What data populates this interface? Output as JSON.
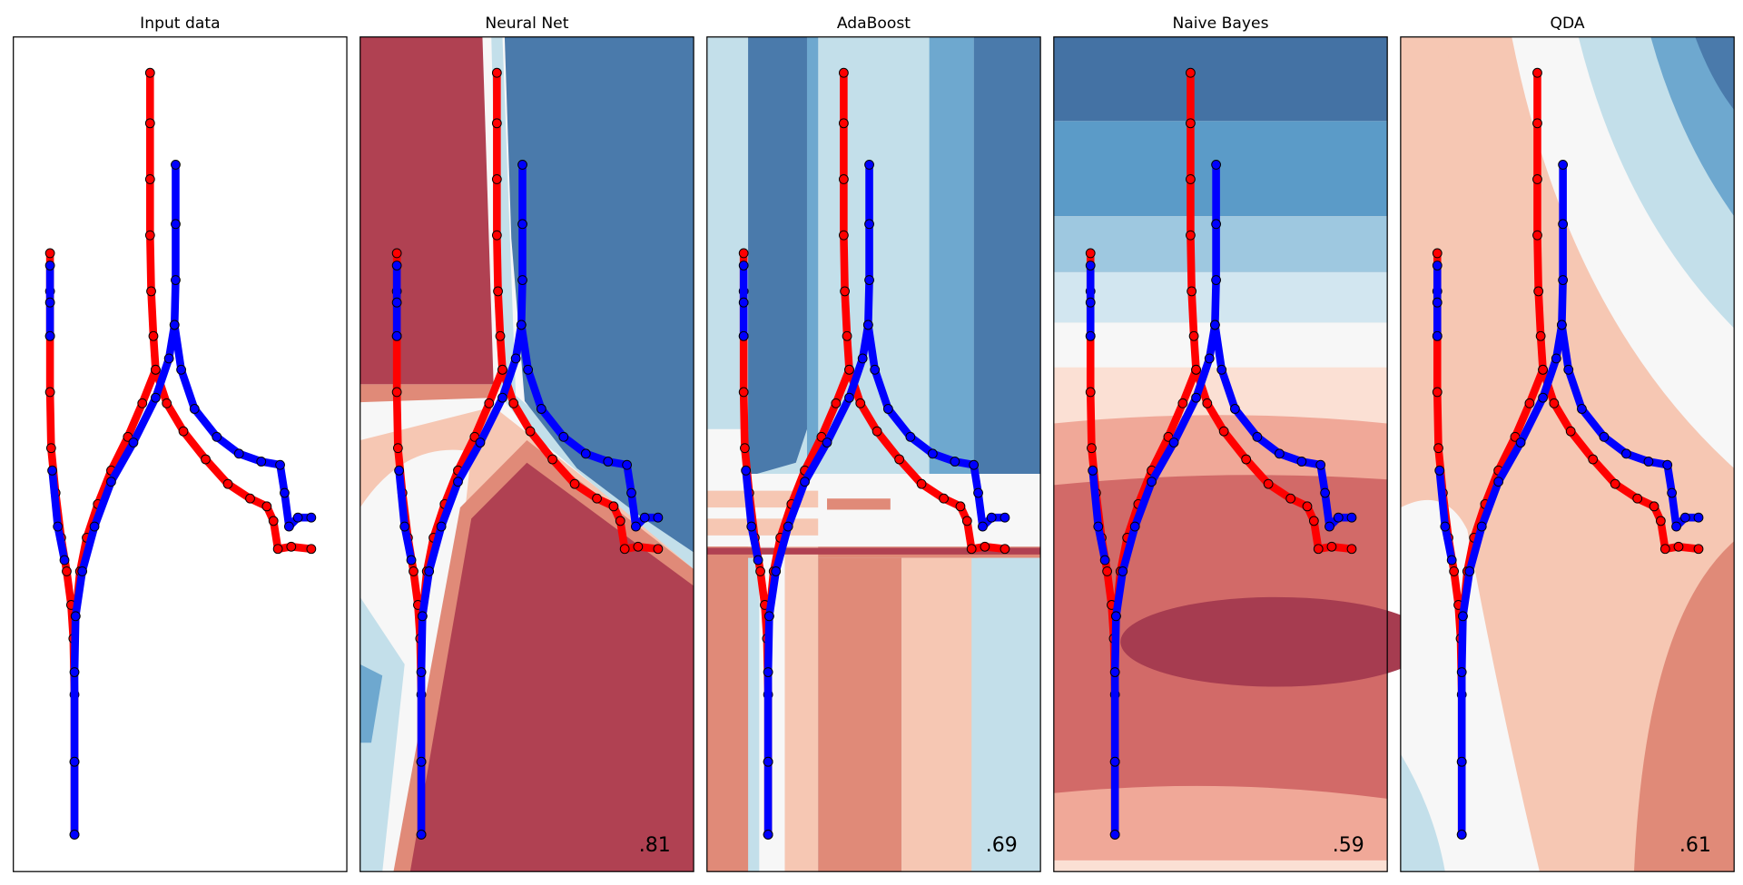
{
  "chart_data": [
    {
      "type": "scatter",
      "title": "Input data",
      "xlim": [
        0,
        300
      ],
      "ylim": [
        0,
        745
      ],
      "series": [
        {
          "color": "#ff0000",
          "x": [
            33,
            33,
            33,
            33,
            34,
            38,
            43,
            48,
            52,
            54,
            55,
            55,
            55,
            null,
            123,
            123,
            123,
            123,
            124,
            126,
            128,
            116,
            103,
            88,
            76,
            66,
            60,
            56,
            null,
            128,
            138,
            153,
            173,
            193,
            213,
            228,
            234,
            238,
            250,
            268
          ],
          "y": [
            552,
            518,
            478,
            428,
            378,
            338,
            298,
            268,
            238,
            208,
            158,
            98,
            33,
            null,
            713,
            668,
            618,
            568,
            518,
            478,
            448,
            418,
            388,
            358,
            328,
            298,
            268,
            228,
            null,
            448,
            418,
            393,
            368,
            346,
            333,
            326,
            313,
            288,
            290,
            288
          ]
        },
        {
          "color": "#0000ff",
          "x": [
            146,
            146,
            146,
            145,
            140,
            128,
            108,
            88,
            73,
            62,
            56,
            55,
            55,
            55,
            null,
            145,
            151,
            163,
            183,
            203,
            223,
            240,
            244,
            248,
            256,
            268,
            null,
            33,
            33,
            33,
            null,
            35,
            40,
            46
          ],
          "y": [
            631,
            578,
            528,
            488,
            458,
            423,
            383,
            348,
            308,
            268,
            228,
            178,
            98,
            33,
            null,
            488,
            448,
            413,
            388,
            373,
            366,
            363,
            338,
            308,
            316,
            316,
            null,
            541,
            508,
            478,
            null,
            358,
            308,
            278
          ]
        }
      ]
    },
    {
      "type": "scatter",
      "title": "Neural Net",
      "score": ".81"
    },
    {
      "type": "scatter",
      "title": "AdaBoost",
      "score": ".69"
    },
    {
      "type": "scatter",
      "title": "Naive Bayes",
      "score": ".59"
    },
    {
      "type": "scatter",
      "title": "QDA",
      "score": ".61"
    }
  ]
}
